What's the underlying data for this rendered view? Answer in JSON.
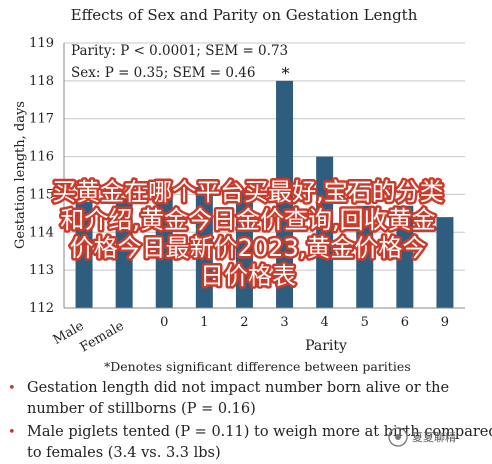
{
  "chart_data": {
    "type": "bar",
    "title": "Effects of Sex and Parity on Gestation Length",
    "ylabel": "Gestation length, days",
    "xlabel": "Parity",
    "ylim": [
      112,
      119
    ],
    "yticks": [
      112,
      113,
      114,
      115,
      116,
      117,
      118,
      119
    ],
    "categories": [
      "Male",
      "Female",
      "0",
      "1",
      "2",
      "3",
      "4",
      "5",
      "6",
      "9"
    ],
    "values": [
      114.8,
      114.9,
      115.2,
      115.2,
      115.1,
      118.0,
      116.0,
      114.7,
      114.7,
      114.4
    ],
    "bar_color": "#2e5d7e",
    "grid": true,
    "annotations": [
      {
        "label": "*",
        "category": "3"
      }
    ],
    "stats_lines": [
      "Parity: P < 0.0001; SEM = 0.73",
      "Sex: P = 0.35; SEM = 0.46"
    ]
  },
  "footnote": "*Denotes significant difference between parities",
  "bullets": [
    "Gestation length did not impact number born alive or the number of stillborns (P = 0.16)",
    "Male piglets tented (P = 0.11) to weigh more at birth compared to females (3.4 vs. 3.3 lbs)"
  ],
  "bullet_lines": [
    [
      "Gestation length did not impact number born alive or the",
      "number of stillborns (P = 0.16)"
    ],
    [
      "Male piglets tented (P = 0.11) to weigh more at birth compared",
      "to females (3.4 vs. 3.3 lbs)"
    ]
  ],
  "overlay_lines": [
    "买黄金在哪个平台买最好,宝石的分类",
    "和介绍,黄金今日金价查询,回收黄金",
    "价格今日最新价2023,黄金价格今",
    "日价格表"
  ],
  "watermark": "夏夏聊精"
}
